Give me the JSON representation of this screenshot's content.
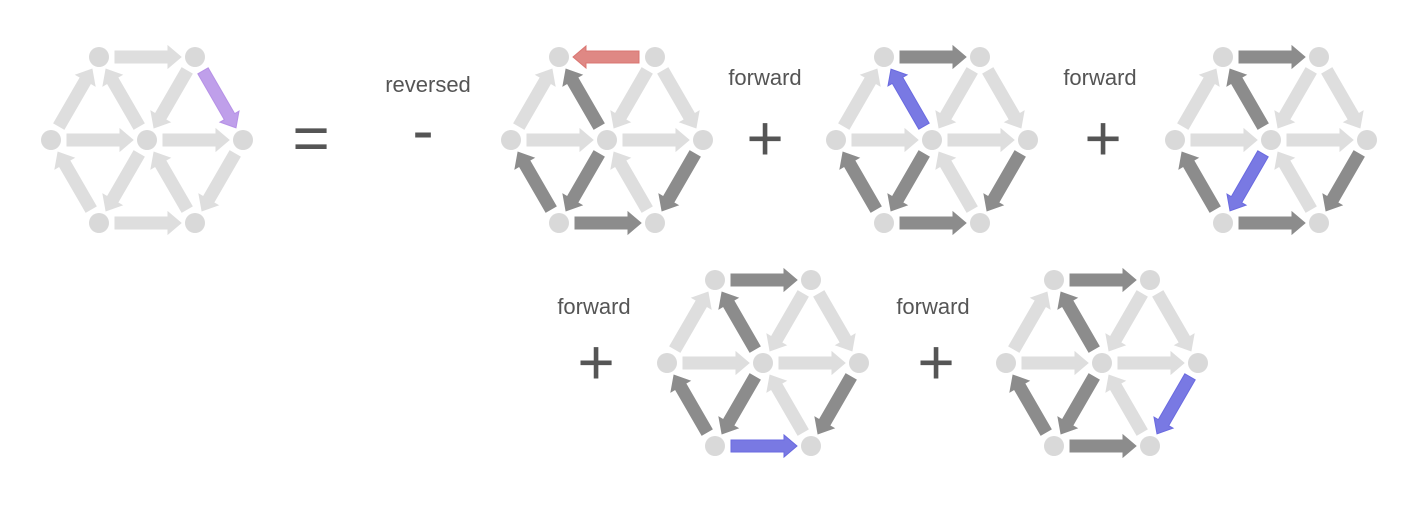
{
  "colors": {
    "node": "#d9d9d9",
    "edge_light": "#dedede",
    "edge_path": "#8c8c8c",
    "edge_highlight_forward": "#6a6ae0",
    "edge_highlight_reversed": "#d9736f",
    "edge_target": "#b48ee6",
    "operator": "#555555"
  },
  "operators": {
    "equals": "=",
    "minus": "-",
    "plus": "+"
  },
  "graphs": [
    {
      "id": "target",
      "label": "",
      "operator": "",
      "edges": {
        "TL-TR": "light",
        "ML-TL": "light",
        "C-TL": "light",
        "TR-C": "light",
        "TR-MR": "target",
        "ML-C": "light",
        "C-MR": "light",
        "BL-ML": "light",
        "C-BL": "light",
        "BR-C": "light",
        "MR-BR": "light",
        "BL-BR": "light"
      }
    },
    {
      "id": "term-1",
      "label": "reversed",
      "operator": "-",
      "edges": {
        "TL-TR": "reversed",
        "ML-TL": "light",
        "C-TL": "path",
        "TR-C": "light",
        "TR-MR": "light",
        "ML-C": "light",
        "C-MR": "light",
        "BL-ML": "path",
        "C-BL": "path",
        "BR-C": "light",
        "MR-BR": "path",
        "BL-BR": "path"
      }
    },
    {
      "id": "term-2",
      "label": "forward",
      "operator": "+",
      "edges": {
        "TL-TR": "path",
        "ML-TL": "light",
        "C-TL": "forward",
        "TR-C": "light",
        "TR-MR": "light",
        "ML-C": "light",
        "C-MR": "light",
        "BL-ML": "path",
        "C-BL": "path",
        "BR-C": "light",
        "MR-BR": "path",
        "BL-BR": "path"
      }
    },
    {
      "id": "term-3",
      "label": "forward",
      "operator": "+",
      "edges": {
        "TL-TR": "path",
        "ML-TL": "light",
        "C-TL": "path",
        "TR-C": "light",
        "TR-MR": "light",
        "ML-C": "light",
        "C-MR": "light",
        "BL-ML": "path",
        "C-BL": "forward",
        "BR-C": "light",
        "MR-BR": "path",
        "BL-BR": "path"
      }
    },
    {
      "id": "term-4",
      "label": "forward",
      "operator": "+",
      "edges": {
        "TL-TR": "path",
        "ML-TL": "light",
        "C-TL": "path",
        "TR-C": "light",
        "TR-MR": "light",
        "ML-C": "light",
        "C-MR": "light",
        "BL-ML": "path",
        "C-BL": "path",
        "BR-C": "light",
        "MR-BR": "path",
        "BL-BR": "forward"
      }
    },
    {
      "id": "term-5",
      "label": "forward",
      "operator": "+",
      "edges": {
        "TL-TR": "path",
        "ML-TL": "light",
        "C-TL": "path",
        "TR-C": "light",
        "TR-MR": "light",
        "ML-C": "light",
        "C-MR": "light",
        "BL-ML": "path",
        "C-BL": "path",
        "BR-C": "light",
        "MR-BR": "forward",
        "BL-BR": "path"
      }
    }
  ]
}
